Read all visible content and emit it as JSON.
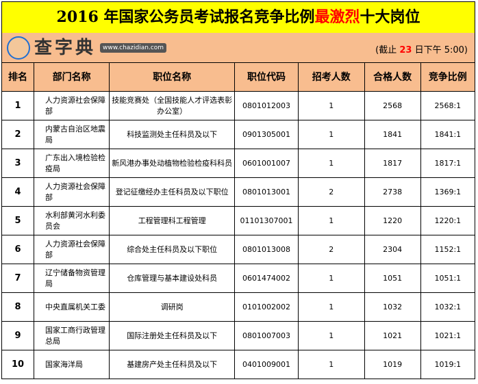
{
  "title": {
    "prefix": "2016 年国家公务员考试报名竞争比例",
    "highlight": "最激烈",
    "suffix": "十大岗位"
  },
  "subtitle": {
    "prefix": "(截止 ",
    "day": "23",
    "suffix": " 日下午 5:00)"
  },
  "headers": [
    "排名",
    "部门名称",
    "职位名称",
    "职位代码",
    "招考人数",
    "合格人数",
    "竞争比例"
  ],
  "rows": [
    [
      "1",
      "人力资源社会保障部",
      "技能竞赛处（全国技能人才评选表彰办公室）",
      "0801012003",
      "1",
      "2568",
      "2568:1"
    ],
    [
      "2",
      "内蒙古自治区地震局",
      "科技监测处主任科员及以下",
      "0901305001",
      "1",
      "1841",
      "1841:1"
    ],
    [
      "3",
      "广东出入境检验检疫局",
      "新风港办事处动植物检验检疫科科员",
      "0601001007",
      "1",
      "1817",
      "1817:1"
    ],
    [
      "4",
      "人力资源社会保障部",
      "登记征缴经办主任科员及以下职位",
      "0801013001",
      "2",
      "2738",
      "1369:1"
    ],
    [
      "5",
      "水利部黄河水利委员会",
      "工程管理科工程管理",
      "01101307001",
      "1",
      "1220",
      "1220:1"
    ],
    [
      "6",
      "人力资源社会保障部",
      "综合处主任科员及以下职位",
      "0801013008",
      "2",
      "2304",
      "1152:1"
    ],
    [
      "7",
      "辽宁储备物资管理局",
      "仓库管理与基本建设处科员",
      "0601474002",
      "1",
      "1051",
      "1051:1"
    ],
    [
      "8",
      "中央直属机关工委",
      "调研岗",
      "0101002002",
      "1",
      "1032",
      "1032:1"
    ],
    [
      "9",
      "国家工商行政管理总局",
      "国际注册处主任科员及以下",
      "0801007003",
      "1",
      "1021",
      "1021:1"
    ],
    [
      "10",
      "国家海洋局",
      "基建房产处主任科员及以下",
      "0401009001",
      "1",
      "1019",
      "1019:1"
    ]
  ],
  "watermark": {
    "brand": "查字典",
    "url": "www.chazidian.com"
  },
  "colors": {
    "title_bg": "#ffff00",
    "header_bg": "#f8bd8f",
    "highlight": "#ff0000"
  }
}
